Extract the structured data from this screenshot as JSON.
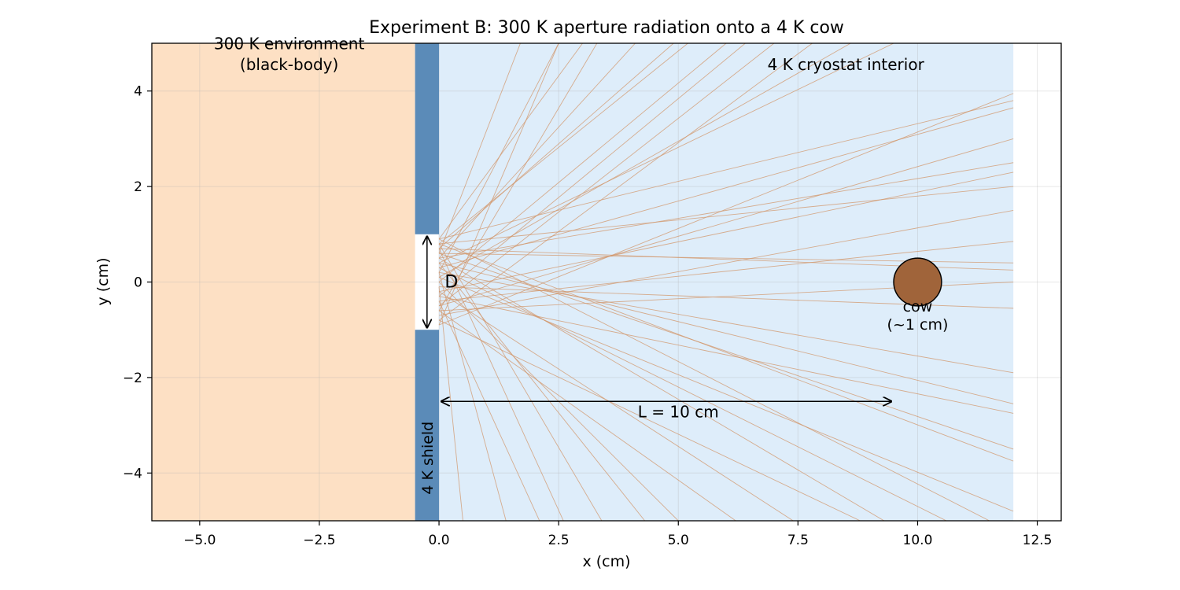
{
  "title": "Experiment B: 300 K aperture radiation onto a 4 K cow",
  "xlabel": "x (cm)",
  "ylabel": "y (cm)",
  "xlim": [
    -6,
    13
  ],
  "ylim": [
    -5,
    5
  ],
  "xticks": [
    -5.0,
    -2.5,
    0.0,
    2.5,
    5.0,
    7.5,
    10.0,
    12.5
  ],
  "xtick_labels": [
    "−5.0",
    "−2.5",
    "0.0",
    "2.5",
    "5.0",
    "7.5",
    "10.0",
    "12.5"
  ],
  "yticks": [
    -4,
    -2,
    0,
    2,
    4
  ],
  "ytick_labels": [
    "−4",
    "−2",
    "0",
    "2",
    "4"
  ],
  "grid": true,
  "colors": {
    "environment": "#fde0c4",
    "cryostat": "#deedfa",
    "shield": "#5b8bb8",
    "ray": "#d2956a",
    "cow_fill": "#a0643a",
    "cow_edge": "#000000"
  },
  "regions": {
    "environment": {
      "x": [
        -6,
        -0.5
      ],
      "label_line1": "300 K environment",
      "label_line2": "(black-body)"
    },
    "cryostat": {
      "x": [
        0,
        12
      ],
      "label": "4 K cryostat interior"
    },
    "shield": {
      "x": [
        -0.5,
        0
      ],
      "aperture": [
        -1,
        1
      ],
      "label": "4 K shield"
    }
  },
  "aperture_label": "D",
  "distance_label": "L = 10 cm",
  "distance_arrow": {
    "x": [
      0.05,
      9.45
    ],
    "y": -2.5
  },
  "cow": {
    "center": [
      10,
      0
    ],
    "radius": 0.5,
    "label_line1": "cow",
    "label_line2": "(~1 cm)"
  },
  "rays": [
    [
      0,
      0.9,
      3.0,
      5.0
    ],
    [
      0,
      0.5,
      4.1,
      5.0
    ],
    [
      0,
      0.8,
      5.2,
      5.0
    ],
    [
      0,
      0.0,
      6.0,
      5.0
    ],
    [
      0,
      0.7,
      4.9,
      5.0
    ],
    [
      0,
      -0.3,
      6.4,
      5.0
    ],
    [
      0,
      0.2,
      2.5,
      5.0
    ],
    [
      0,
      -0.6,
      3.3,
      5.0
    ],
    [
      0,
      0.6,
      1.7,
      5.0
    ],
    [
      0,
      -0.9,
      2.5,
      5.0
    ],
    [
      0,
      -0.8,
      7.8,
      5.0
    ],
    [
      0,
      0.4,
      9.5,
      5.0
    ],
    [
      0,
      -0.5,
      7.0,
      5.0
    ],
    [
      0,
      0.1,
      8.6,
      5.0
    ],
    [
      0,
      0.9,
      12,
      3.8
    ],
    [
      0,
      -0.9,
      12,
      3.95
    ],
    [
      0,
      0.3,
      12,
      3.65
    ],
    [
      0,
      -0.5,
      12,
      3.0
    ],
    [
      0,
      0.5,
      12,
      2.5
    ],
    [
      0,
      -0.2,
      12,
      2.3
    ],
    [
      0,
      0.8,
      12,
      2.0
    ],
    [
      0,
      -0.7,
      12,
      1.5
    ],
    [
      0,
      -0.4,
      12,
      0.85
    ],
    [
      0,
      0.6,
      12,
      0.4
    ],
    [
      0,
      0.7,
      12,
      0.25
    ],
    [
      0,
      -0.6,
      12,
      0.0
    ],
    [
      0,
      -0.1,
      12,
      -0.55
    ],
    [
      0,
      0.2,
      12,
      -1.9
    ],
    [
      0,
      0.4,
      12,
      -2.55
    ],
    [
      0,
      -0.3,
      12,
      -2.75
    ],
    [
      0,
      0.6,
      12,
      -3.5
    ],
    [
      0,
      0.8,
      12,
      -3.75
    ],
    [
      0,
      0.1,
      12,
      -4.8
    ],
    [
      0,
      0.9,
      11.5,
      -5.0
    ],
    [
      0,
      0.3,
      10.6,
      -5.0
    ],
    [
      0,
      -0.8,
      8.8,
      -5.0
    ],
    [
      0,
      0.5,
      9.3,
      -5.0
    ],
    [
      0,
      -0.2,
      7.4,
      -5.0
    ],
    [
      0,
      0.0,
      5.0,
      -5.0
    ],
    [
      0,
      0.4,
      4.3,
      -5.0
    ],
    [
      0,
      0.7,
      2.6,
      -5.0
    ],
    [
      0,
      -0.4,
      2.1,
      -5.0
    ],
    [
      0,
      0.2,
      1.4,
      -5.0
    ],
    [
      0,
      -0.1,
      0.5,
      -5.0
    ],
    [
      0,
      0.8,
      3.4,
      -5.0
    ],
    [
      0,
      -0.6,
      6.2,
      -5.0
    ]
  ]
}
